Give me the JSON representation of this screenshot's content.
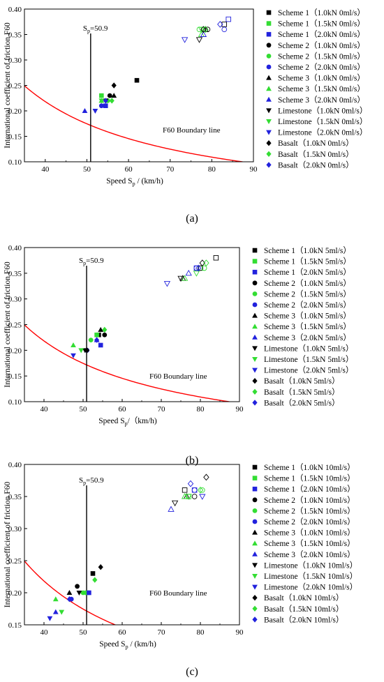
{
  "panels": [
    {
      "caption": "(a)",
      "chart_data": {
        "type": "scatter",
        "xlabel": "Speed S_p / (km/h)",
        "xlabel_main": "Speed S",
        "xlabel_sub": "p",
        "xlabel_tail": " / (km/h)",
        "ylabel": "International coefficient of friction F60",
        "xlim": [
          35,
          90
        ],
        "ylim": [
          0.1,
          0.4
        ],
        "xticks": [
          "40",
          "50",
          "60",
          "70",
          "80",
          "90"
        ],
        "yticks": [
          "0.10",
          "0.15",
          "0.20",
          "0.25",
          "0.30",
          "0.35",
          "0.40"
        ],
        "sp_line": {
          "x": 50.9,
          "label_main": "S",
          "label_sub": "p",
          "label_tail": "=50.9"
        },
        "boundary": {
          "label": "F60 Boundary line",
          "color": "#ff0000"
        },
        "series": [
          {
            "name": "Scheme 1（1.0kN 0ml/s）",
            "marker": "square",
            "color": "#000000",
            "filled": [
              [
                62,
                0.26
              ]
            ],
            "hollow": [
              [
                83,
                0.37
              ]
            ]
          },
          {
            "name": "Scheme 1（1.5kN 0ml/s）",
            "marker": "square",
            "color": "#33dd33",
            "filled": [
              [
                53.5,
                0.23
              ]
            ],
            "hollow": [
              [
                78,
                0.36
              ]
            ]
          },
          {
            "name": "Scheme 1（2.0kN 0ml/s）",
            "marker": "square",
            "color": "#2222dd",
            "filled": [
              [
                54.5,
                0.21
              ]
            ],
            "hollow": [
              [
                84,
                0.38
              ]
            ]
          },
          {
            "name": "Scheme 2（1.0kN 0ml/s）",
            "marker": "circle",
            "color": "#000000",
            "filled": [
              [
                55.5,
                0.23
              ]
            ],
            "hollow": [
              [
                79,
                0.36
              ]
            ]
          },
          {
            "name": "Scheme 2（1.5kN 0ml/s）",
            "marker": "circle",
            "color": "#33dd33",
            "filled": [
              [
                55,
                0.22
              ]
            ],
            "hollow": [
              [
                77,
                0.36
              ]
            ]
          },
          {
            "name": "Scheme 2（2.0kN 0ml/s）",
            "marker": "circle",
            "color": "#2222dd",
            "filled": [
              [
                53.5,
                0.21
              ]
            ],
            "hollow": [
              [
                83,
                0.36
              ]
            ]
          },
          {
            "name": "Scheme 3（1.0kN 0ml/s）",
            "marker": "triangle-up",
            "color": "#000000",
            "filled": [
              [
                56.5,
                0.23
              ]
            ],
            "hollow": [
              [
                78.5,
                0.36
              ]
            ]
          },
          {
            "name": "Scheme 3（1.5kN 0ml/s）",
            "marker": "triangle-up",
            "color": "#33dd33",
            "filled": [
              [
                53.5,
                0.22
              ]
            ],
            "hollow": [
              [
                77.5,
                0.35
              ]
            ]
          },
          {
            "name": "Scheme 3（2.0kN 0ml/s）",
            "marker": "triangle-up",
            "color": "#2222dd",
            "filled": [
              [
                49.5,
                0.2
              ]
            ],
            "hollow": [
              [
                78,
                0.35
              ]
            ]
          },
          {
            "name": "Limestone（1.0kN 0ml/s）",
            "marker": "triangle-down",
            "color": "#000000",
            "filled": [
              [
                54.5,
                0.22
              ]
            ],
            "hollow": [
              [
                77,
                0.34
              ]
            ]
          },
          {
            "name": "Limestone（1.5kN 0ml/s）",
            "marker": "triangle-down",
            "color": "#33dd33",
            "filled": [
              [
                53.5,
                0.22
              ]
            ],
            "hollow": [
              [
                77.5,
                0.36
              ]
            ]
          },
          {
            "name": "Limestone（2.0kN 0ml/s）",
            "marker": "triangle-down",
            "color": "#2222dd",
            "filled": [
              [
                52,
                0.2
              ]
            ],
            "hollow": [
              [
                73.5,
                0.34
              ]
            ]
          },
          {
            "name": "Basalt（1.0kN 0ml/s）",
            "marker": "diamond",
            "color": "#000000",
            "filled": [
              [
                56.5,
                0.25
              ]
            ],
            "hollow": [
              [
                78,
                0.36
              ]
            ]
          },
          {
            "name": "Basalt（1.5kN 0ml/s）",
            "marker": "diamond",
            "color": "#33dd33",
            "filled": [
              [
                56,
                0.22
              ]
            ],
            "hollow": [
              [
                78.5,
                0.36
              ]
            ]
          },
          {
            "name": "Basalt（2.0kN 0ml/s）",
            "marker": "diamond",
            "color": "#2222dd",
            "filled": [
              [
                54.5,
                0.22
              ]
            ],
            "hollow": [
              [
                82,
                0.37
              ]
            ]
          }
        ]
      }
    },
    {
      "caption": "(b)",
      "chart_data": {
        "type": "scatter",
        "xlabel": "Speed S_p/（km/h)",
        "xlabel_main": "Speed S",
        "xlabel_sub": "p",
        "xlabel_tail": "/（km/h)",
        "ylabel": "International coefficient of friction F60",
        "xlim": [
          35,
          90
        ],
        "ylim": [
          0.1,
          0.4
        ],
        "xticks": [
          "40",
          "50",
          "60",
          "70",
          "80",
          "90"
        ],
        "yticks": [
          "0.10",
          "0.15",
          "0.20",
          "0.25",
          "0.30",
          "0.35",
          "0.40"
        ],
        "sp_line": {
          "x": 50.9,
          "label_main": "S",
          "label_sub": "p",
          "label_tail": "=50.9"
        },
        "boundary": {
          "label": "F60 Boundary line",
          "color": "#ff0000"
        },
        "series": [
          {
            "name": "Scheme 1（1.0kN 5ml/s）",
            "marker": "square",
            "color": "#000000",
            "filled": [
              [
                54,
                0.23
              ]
            ],
            "hollow": [
              [
                84,
                0.38
              ]
            ]
          },
          {
            "name": "Scheme 1（1.5kN 5ml/s）",
            "marker": "square",
            "color": "#33dd33",
            "filled": [
              [
                53.5,
                0.23
              ]
            ],
            "hollow": [
              [
                80,
                0.36
              ]
            ]
          },
          {
            "name": "Scheme 1（2.0kN 5ml/s）",
            "marker": "square",
            "color": "#2222dd",
            "filled": [
              [
                54.5,
                0.21
              ]
            ],
            "hollow": [
              [
                79,
                0.36
              ]
            ]
          },
          {
            "name": "Scheme 2（1.0kN 5ml/s）",
            "marker": "circle",
            "color": "#000000",
            "filled": [
              [
                55.5,
                0.23
              ]
            ],
            "hollow": [
              [
                80,
                0.36
              ]
            ]
          },
          {
            "name": "Scheme 2（1.5kN 5ml/s）",
            "marker": "circle",
            "color": "#33dd33",
            "filled": [
              [
                52,
                0.22
              ]
            ],
            "hollow": [
              [
                81,
                0.36
              ]
            ]
          },
          {
            "name": "Scheme 2（2.0kN 5ml/s）",
            "marker": "circle",
            "color": "#2222dd",
            "filled": [
              [
                51,
                0.2
              ]
            ],
            "hollow": [
              [
                79,
                0.36
              ]
            ]
          },
          {
            "name": "Scheme 3（1.0kN 5ml/s）",
            "marker": "triangle-up",
            "color": "#000000",
            "filled": [
              [
                54.5,
                0.24
              ]
            ],
            "hollow": [
              [
                75.5,
                0.34
              ]
            ]
          },
          {
            "name": "Scheme 3（1.5kN 5ml/s）",
            "marker": "triangle-up",
            "color": "#33dd33",
            "filled": [
              [
                47.5,
                0.21
              ]
            ],
            "hollow": [
              [
                76,
                0.34
              ]
            ]
          },
          {
            "name": "Scheme 3（2.0kN 5ml/s）",
            "marker": "triangle-up",
            "color": "#2222dd",
            "filled": [
              [
                53.5,
                0.22
              ]
            ],
            "hollow": [
              [
                77,
                0.35
              ]
            ]
          },
          {
            "name": "Limestone（1.0kN 5ml/s）",
            "marker": "triangle-down",
            "color": "#000000",
            "filled": [
              [
                50.5,
                0.2
              ]
            ],
            "hollow": [
              [
                75,
                0.34
              ]
            ]
          },
          {
            "name": "Limestone（1.5kN 5ml/s）",
            "marker": "triangle-down",
            "color": "#33dd33",
            "filled": [
              [
                49.5,
                0.2
              ]
            ],
            "hollow": [
              [
                79,
                0.35
              ]
            ]
          },
          {
            "name": "Limestone（2.0kN 5ml/s）",
            "marker": "triangle-down",
            "color": "#2222dd",
            "filled": [
              [
                47.5,
                0.19
              ]
            ],
            "hollow": [
              [
                71.5,
                0.33
              ]
            ]
          },
          {
            "name": "Basalt（1.0kN 5ml/s）",
            "marker": "diamond",
            "color": "#000000",
            "filled": [
              [
                51,
                0.2
              ]
            ],
            "hollow": [
              [
                80.5,
                0.37
              ]
            ]
          },
          {
            "name": "Basalt（1.5kN 5ml/s）",
            "marker": "diamond",
            "color": "#33dd33",
            "filled": [
              [
                55.5,
                0.24
              ]
            ],
            "hollow": [
              [
                81.5,
                0.37
              ]
            ]
          },
          {
            "name": "Basalt（2.0kN 5ml/s）",
            "marker": "diamond",
            "color": "#2222dd",
            "filled": [
              [
                53.5,
                0.22
              ]
            ],
            "hollow": [
              [
                79.5,
                0.36
              ]
            ]
          }
        ]
      }
    },
    {
      "caption": "(c)",
      "chart_data": {
        "type": "scatter",
        "xlabel": "Speed S_p / (km/h)",
        "xlabel_main": "Speed S",
        "xlabel_sub": "p",
        "xlabel_tail": " / (km/h)",
        "ylabel": "International coefficient of friction F60",
        "xlim": [
          35,
          90
        ],
        "ylim": [
          0.15,
          0.4
        ],
        "xticks": [
          "40",
          "50",
          "60",
          "70",
          "80",
          "90"
        ],
        "yticks": [
          "0.15",
          "0.20",
          "0.25",
          "0.30",
          "0.35",
          "0.40"
        ],
        "sp_line": {
          "x": 50.9,
          "label_main": "S",
          "label_sub": "p",
          "label_tail": "=50.9"
        },
        "boundary": {
          "label": "F60 Boundary line",
          "color": "#ff0000"
        },
        "series": [
          {
            "name": "Scheme 1（1.0kN 10ml/s）",
            "marker": "square",
            "color": "#000000",
            "filled": [
              [
                52.5,
                0.23
              ]
            ],
            "hollow": [
              [
                76,
                0.36
              ]
            ]
          },
          {
            "name": "Scheme 1（1.5kN 10ml/s）",
            "marker": "square",
            "color": "#33dd33",
            "filled": [
              [
                51,
                0.2
              ]
            ],
            "hollow": [
              [
                77,
                0.35
              ]
            ]
          },
          {
            "name": "Scheme 1（2.0kN 10ml/s）",
            "marker": "square",
            "color": "#2222dd",
            "filled": [
              [
                51.5,
                0.2
              ]
            ],
            "hollow": [
              [
                78.5,
                0.36
              ]
            ]
          },
          {
            "name": "Scheme 2（1.0kN 10ml/s）",
            "marker": "circle",
            "color": "#000000",
            "filled": [
              [
                48.5,
                0.21
              ]
            ],
            "hollow": [
              [
                78.5,
                0.35
              ]
            ]
          },
          {
            "name": "Scheme 2（1.5kN 10ml/s）",
            "marker": "circle",
            "color": "#33dd33",
            "filled": [
              [
                50,
                0.2
              ]
            ],
            "hollow": [
              [
                80.5,
                0.36
              ]
            ]
          },
          {
            "name": "Scheme 2（2.0kN 10ml/s）",
            "marker": "circle",
            "color": "#2222dd",
            "filled": [
              [
                47,
                0.19
              ]
            ],
            "hollow": [
              [
                78.5,
                0.36
              ]
            ]
          },
          {
            "name": "Scheme 3（1.0kN 10ml/s）",
            "marker": "triangle-up",
            "color": "#000000",
            "filled": [
              [
                46.5,
                0.2
              ]
            ],
            "hollow": [
              [
                76.5,
                0.35
              ]
            ]
          },
          {
            "name": "Scheme 3（1.5kN 10ml/s）",
            "marker": "triangle-up",
            "color": "#33dd33",
            "filled": [
              [
                43,
                0.19
              ]
            ],
            "hollow": [
              [
                76,
                0.35
              ]
            ]
          },
          {
            "name": "Scheme 3（2.0kN 10ml/s）",
            "marker": "triangle-up",
            "color": "#2222dd",
            "filled": [
              [
                43,
                0.17
              ]
            ],
            "hollow": [
              [
                72.5,
                0.33
              ]
            ]
          },
          {
            "name": "Limestone（1.0kN 10ml/s）",
            "marker": "triangle-down",
            "color": "#000000",
            "filled": [
              [
                49,
                0.2
              ]
            ],
            "hollow": [
              [
                73.5,
                0.34
              ]
            ]
          },
          {
            "name": "Limestone（1.5kN 10ml/s）",
            "marker": "triangle-down",
            "color": "#33dd33",
            "filled": [
              [
                44.5,
                0.17
              ]
            ],
            "hollow": [
              [
                77,
                0.35
              ]
            ]
          },
          {
            "name": "Limestone（2.0kN 10ml/s）",
            "marker": "triangle-down",
            "color": "#2222dd",
            "filled": [
              [
                41.5,
                0.16
              ]
            ],
            "hollow": [
              [
                80.5,
                0.35
              ]
            ]
          },
          {
            "name": "Basalt（1.0kN 10ml/s）",
            "marker": "diamond",
            "color": "#000000",
            "filled": [
              [
                54.5,
                0.24
              ]
            ],
            "hollow": [
              [
                81.5,
                0.38
              ]
            ]
          },
          {
            "name": "Basalt（1.5kN 10ml/s）",
            "marker": "diamond",
            "color": "#33dd33",
            "filled": [
              [
                53,
                0.22
              ]
            ],
            "hollow": [
              [
                80,
                0.36
              ]
            ]
          },
          {
            "name": "Basalt（2.0kN 10ml/s）",
            "marker": "diamond",
            "color": "#2222dd",
            "filled": [
              [
                46.5,
                0.19
              ]
            ],
            "hollow": [
              [
                77.5,
                0.37
              ]
            ]
          }
        ]
      }
    }
  ]
}
